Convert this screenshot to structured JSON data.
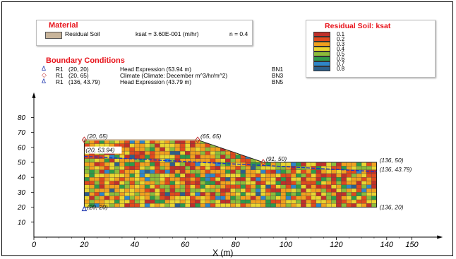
{
  "material": {
    "title": "Material",
    "name": "Residual Soil",
    "ksat": "ksat = 3.60E-001 (m/hr)",
    "porosity": "n = 0.4",
    "swatch_color": "#c8b49a"
  },
  "boundary_conditions": {
    "title": "Boundary Conditions",
    "rows": [
      {
        "symbol": "Δ",
        "color": "#2038b0",
        "region": "R1",
        "point": "(20, 20)",
        "description": "Head Expression (53.94 m)",
        "id": "BN1"
      },
      {
        "symbol": "◇",
        "color": "#c03030",
        "region": "R1",
        "point": "(20, 65)",
        "description": "Climate (Climate: December m^3/hr/m^2)",
        "id": "BN3"
      },
      {
        "symbol": "Δ",
        "color": "#2038b0",
        "region": "R1",
        "point": "(136, 43.79)",
        "description": "Head Expression (43.79 m)",
        "id": "BN5"
      }
    ]
  },
  "legend": {
    "title": "Residual Soil: ksat",
    "entries": [
      {
        "label": "0.1",
        "color": "#c0302a"
      },
      {
        "label": "0.2",
        "color": "#e04a1e"
      },
      {
        "label": "0.3",
        "color": "#f0a11e"
      },
      {
        "label": "0.4",
        "color": "#e9d530"
      },
      {
        "label": "0.5",
        "color": "#8cbc3a"
      },
      {
        "label": "0.6",
        "color": "#2f9a4a"
      },
      {
        "label": "0.7",
        "color": "#2f86c8"
      },
      {
        "label": "0.8",
        "color": "#2e5f8a"
      }
    ]
  },
  "axes": {
    "xlabel": "X (m)",
    "x_ticks": [
      "0",
      "20",
      "40",
      "60",
      "80",
      "100",
      "120",
      "140",
      "150"
    ],
    "y_ticks": [
      "10",
      "20",
      "30",
      "40",
      "50",
      "60",
      "70",
      "80"
    ]
  },
  "geometry": {
    "vertices": [
      [
        20,
        20
      ],
      [
        20,
        65
      ],
      [
        65,
        65
      ],
      [
        91,
        50
      ],
      [
        136,
        50
      ],
      [
        136,
        20
      ]
    ],
    "water_table": [
      [
        20,
        53.94
      ],
      [
        91,
        47.9
      ],
      [
        136,
        43.79
      ]
    ],
    "point_labels": [
      {
        "text": "(20, 65)",
        "x": 20,
        "y": 65
      },
      {
        "text": "(65, 65)",
        "x": 65,
        "y": 65
      },
      {
        "text": "(20, 53.94)",
        "x": 20,
        "y": 53.94
      },
      {
        "text": "(91, 50)",
        "x": 91,
        "y": 50
      },
      {
        "text": "(136, 50)",
        "x": 136,
        "y": 50
      },
      {
        "text": "(136, 43.79)",
        "x": 136,
        "y": 43.79
      },
      {
        "text": "(20, 20)",
        "x": 20,
        "y": 20
      },
      {
        "text": "(136, 20)",
        "x": 136,
        "y": 20
      }
    ],
    "ksat_grid_colors": [
      "#c0302a",
      "#e04a1e",
      "#f0a11e",
      "#e9d530",
      "#8cbc3a",
      "#2f9a4a",
      "#2f86c8",
      "#2e5f8a"
    ]
  }
}
